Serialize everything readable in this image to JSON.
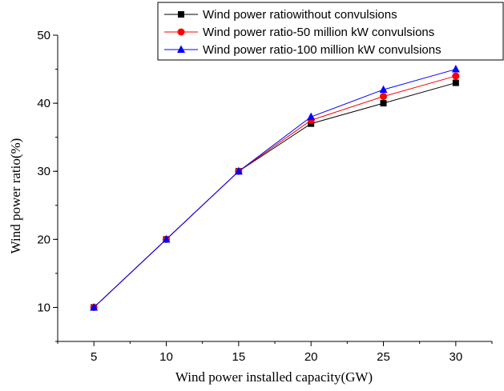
{
  "chart_data": {
    "type": "line",
    "title": "",
    "xlabel": "Wind power installed capacity(GW)",
    "ylabel": "Wind power ratio(%)",
    "x": [
      5,
      10,
      15,
      20,
      25,
      30
    ],
    "x_tick_labels": [
      "5",
      "10",
      "15",
      "20",
      "25",
      "30"
    ],
    "y_tick_labels": [
      "10",
      "20",
      "30",
      "40",
      "50"
    ],
    "xlim": [
      2.5,
      32.5
    ],
    "ylim": [
      5,
      50
    ],
    "grid": false,
    "legend_position": "top-right",
    "series": [
      {
        "name": "Wind power ratiowithout convulsions",
        "color": "#000000",
        "marker": "square",
        "values": [
          10,
          20,
          30,
          37,
          40,
          43
        ]
      },
      {
        "name": "Wind power ratio-50 million kW convulsions",
        "color": "#ff0000",
        "marker": "circle",
        "values": [
          10,
          20,
          30,
          37.5,
          41,
          44
        ]
      },
      {
        "name": "Wind power ratio-100 million kW convulsions",
        "color": "#0000ff",
        "marker": "triangle",
        "values": [
          10,
          20,
          30,
          38,
          42,
          45
        ]
      }
    ]
  }
}
